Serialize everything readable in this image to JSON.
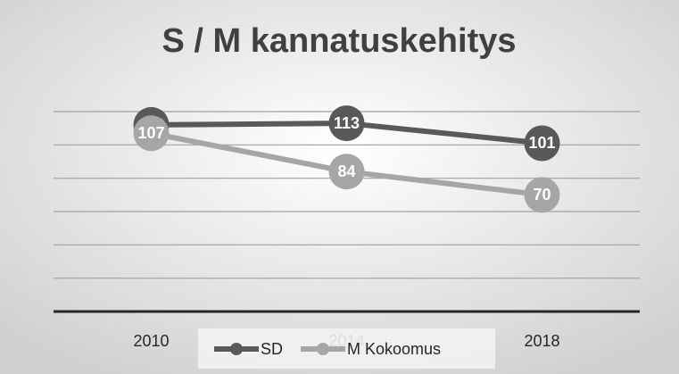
{
  "chart_data": {
    "type": "line",
    "title": "S / M kannatuskehitys",
    "categories": [
      "2010",
      "2014",
      "2018"
    ],
    "series": [
      {
        "name": "SD",
        "color": "#595959",
        "values": [
          112,
          113,
          101
        ]
      },
      {
        "name": "M Kokoomus",
        "color": "#a6a6a6",
        "values": [
          107,
          84,
          70
        ]
      }
    ],
    "ylim": [
      0,
      120
    ],
    "yticks": [
      0,
      20,
      40,
      60,
      80,
      100,
      120
    ],
    "grid": true,
    "legend": "bottom"
  }
}
